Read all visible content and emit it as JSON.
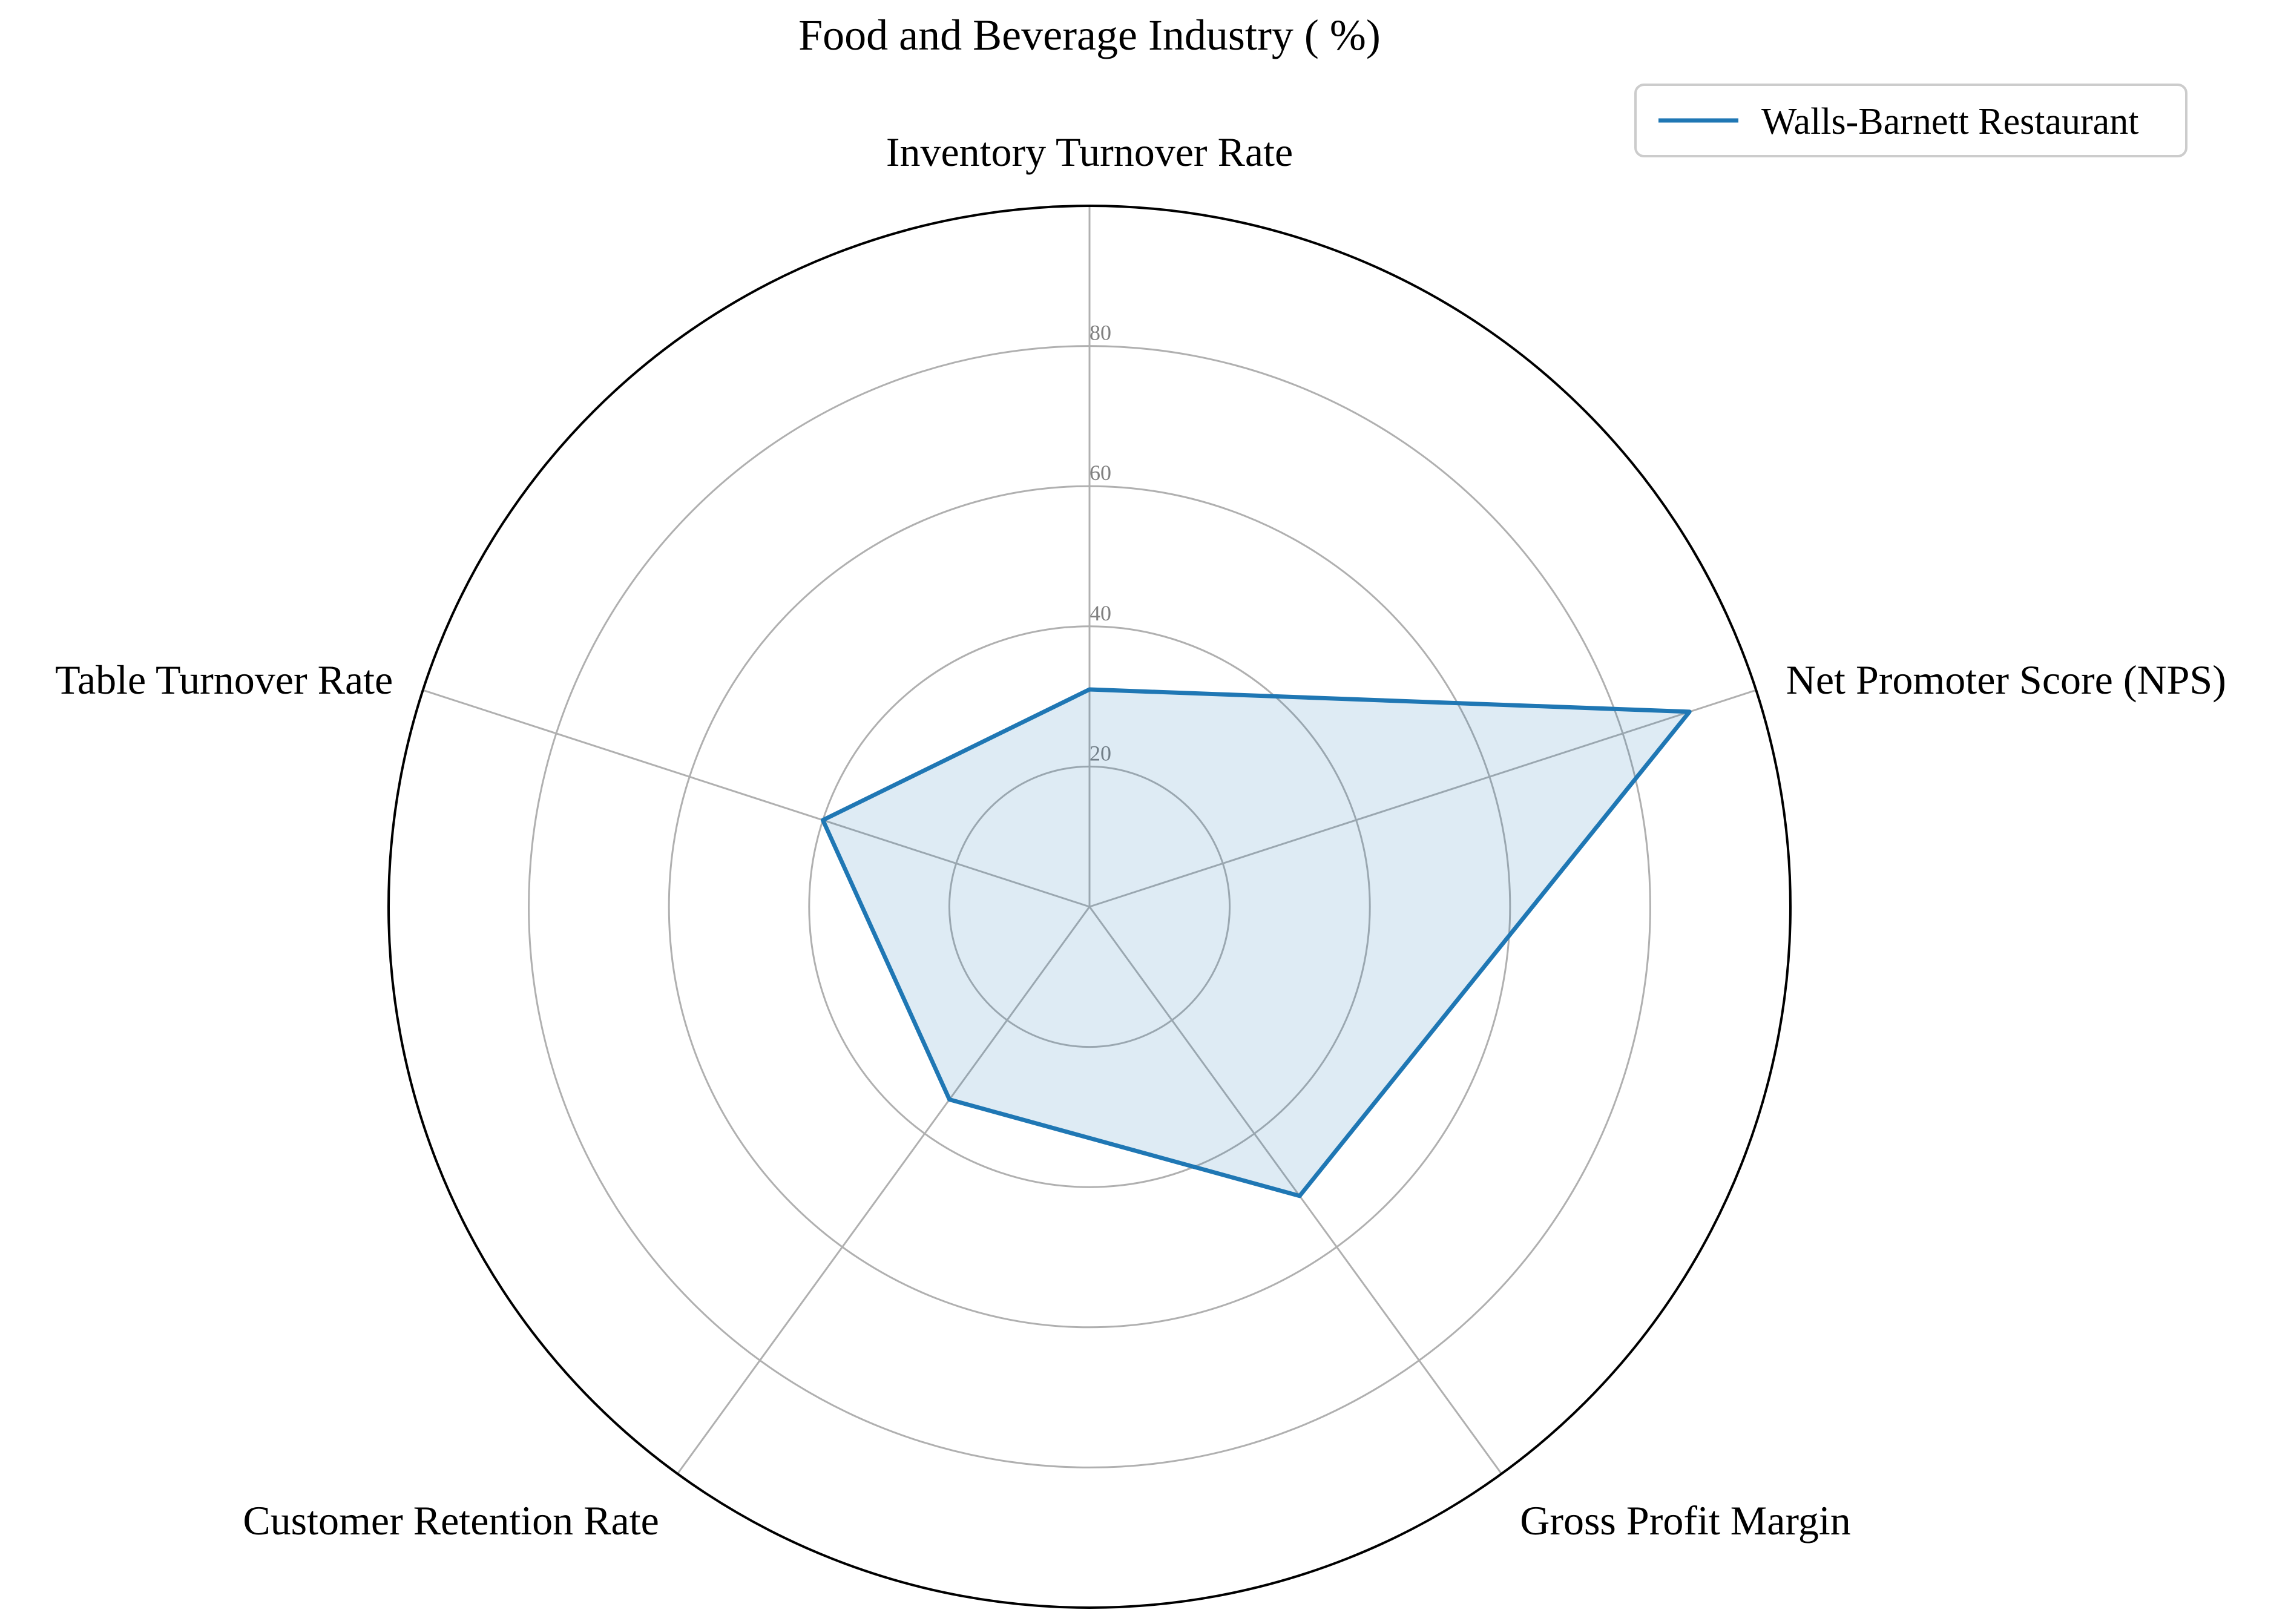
{
  "chart_data": {
    "type": "radar",
    "title": "Food and Beverage Industry ( %)",
    "categories": [
      "Inventory Turnover Rate",
      "Net Promoter Score (NPS)",
      "Gross Profit Margin",
      "Customer Retention Rate",
      "Table Turnover Rate"
    ],
    "series": [
      {
        "name": "Walls-Barnett Restaurant",
        "values": [
          31,
          90,
          51,
          34,
          40
        ],
        "color": "#1f77b4",
        "fill_opacity": 0.15
      }
    ],
    "radial_ticks": [
      20,
      40,
      60,
      80
    ],
    "rlim": [
      0,
      100
    ],
    "grid": true,
    "legend_position": "top-right",
    "colors": {
      "grid": "#b0b0b0",
      "outer_frame": "#000000",
      "tick_label": "#808080",
      "text": "#000000"
    }
  }
}
